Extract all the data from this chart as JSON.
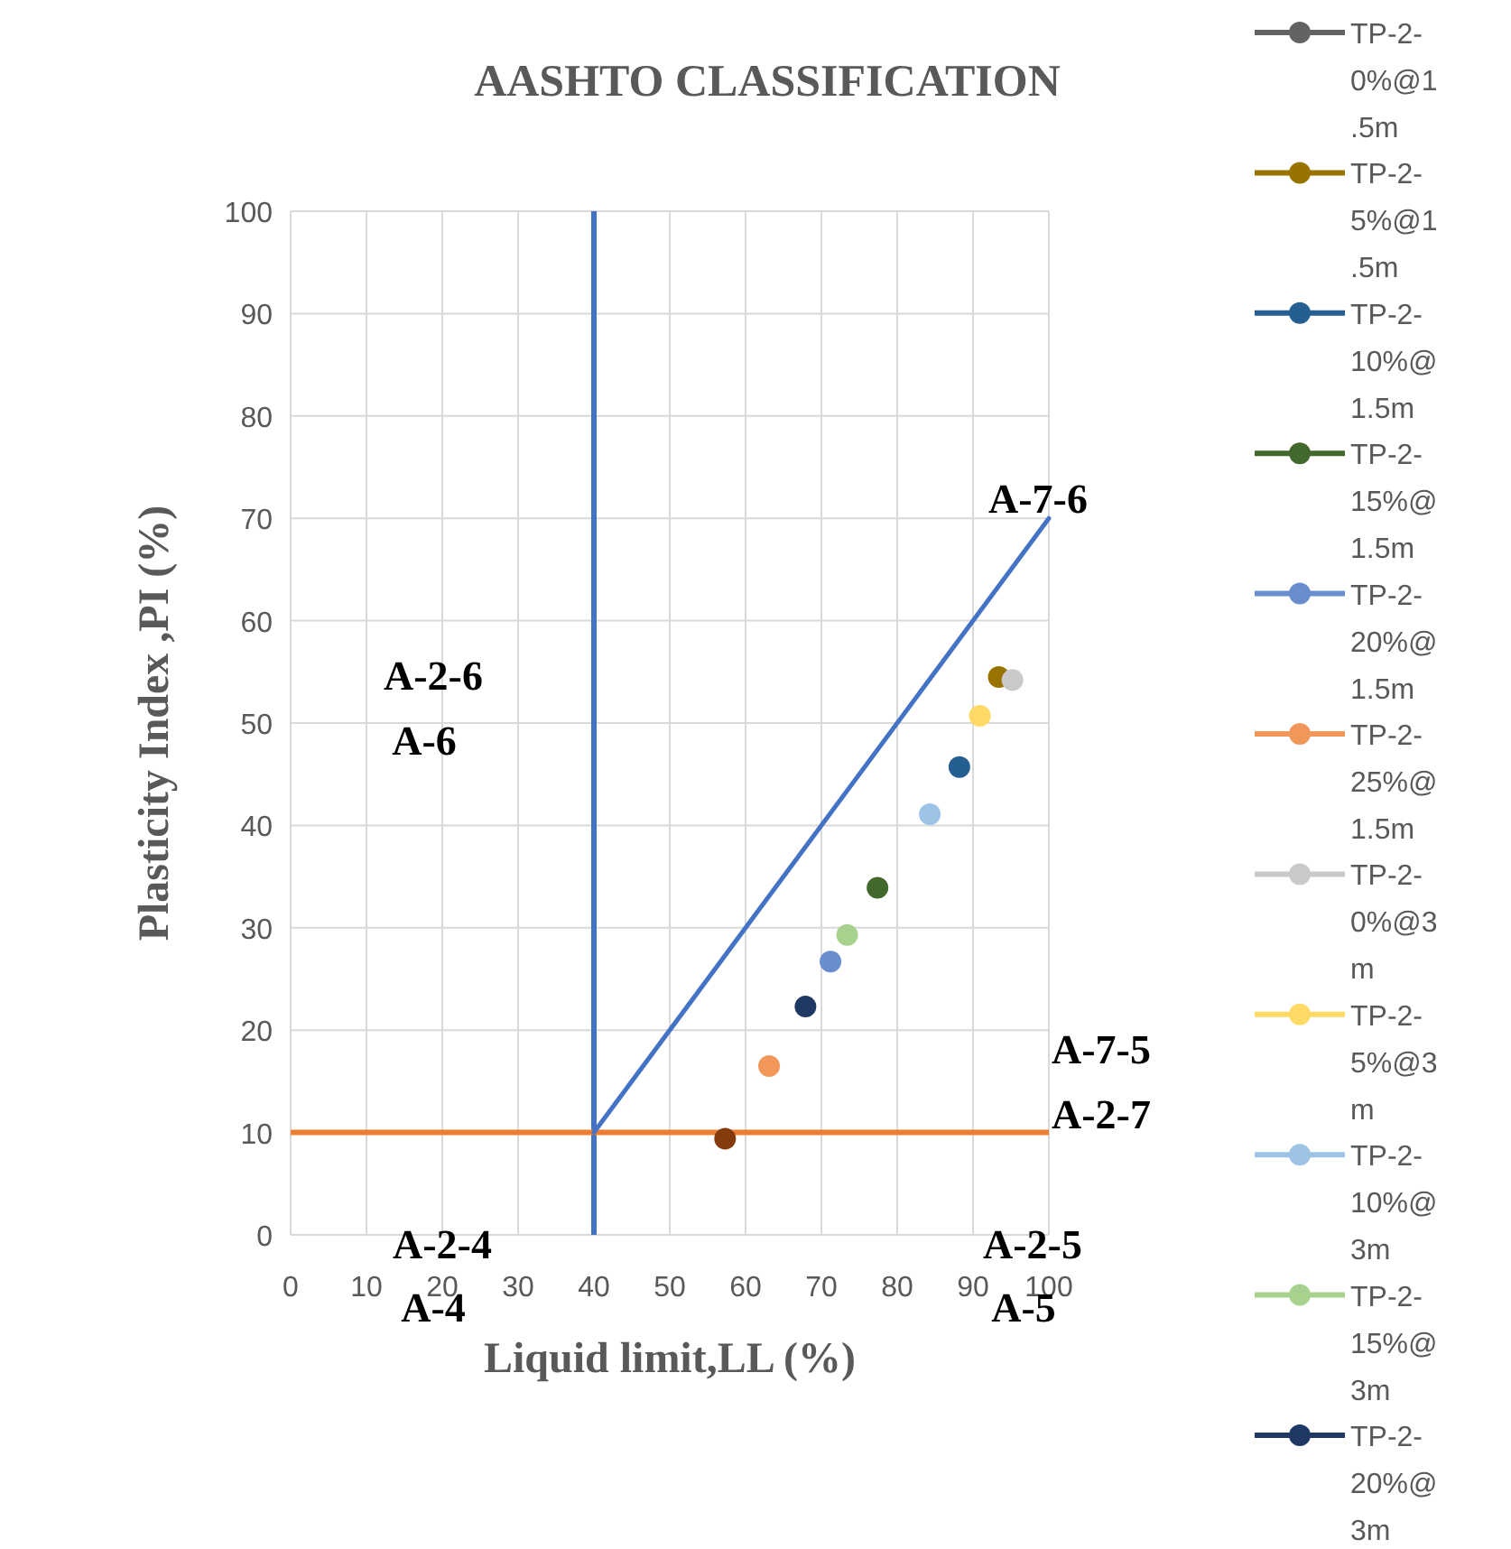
{
  "chart_data": {
    "type": "scatter",
    "title": "AASHTO CLASSIFICATION",
    "xlabel": "Liquid limit,LL (%)",
    "ylabel": "Plasticity Index ,PI (%)",
    "xlim": [
      0,
      100
    ],
    "xticks": [
      0,
      10,
      20,
      30,
      40,
      50,
      60,
      70,
      80,
      90,
      100
    ],
    "ylim": [
      0,
      100
    ],
    "yticks": [
      0,
      10,
      20,
      30,
      40,
      50,
      60,
      70,
      80,
      90,
      100
    ],
    "grid": true,
    "legend": "right",
    "marker": "circle",
    "series": [
      {
        "name": "TP-2-0%@1.5m",
        "color": "#636363"
      },
      {
        "name": "TP-2-5%@1.5m",
        "color": "#997300",
        "x": [
          93.4
        ],
        "values": [
          54.5
        ]
      },
      {
        "name": "TP-2-10%@1.5m",
        "color": "#255e91",
        "x": [
          88.2
        ],
        "values": [
          45.7
        ]
      },
      {
        "name": "TP-2-15%@1.5m",
        "color": "#43682b",
        "x": [
          77.4
        ],
        "values": [
          33.9
        ]
      },
      {
        "name": "TP-2-20%@1.5m",
        "color": "#698ed0",
        "x": [
          71.2
        ],
        "values": [
          26.7
        ]
      },
      {
        "name": "TP-2-25%@1.5m",
        "color": "#f1975a",
        "x": [
          63.1
        ],
        "values": [
          16.5
        ]
      },
      {
        "name": "TP-2-0%@3m",
        "color": "#c9c9c9",
        "x": [
          95.2
        ],
        "values": [
          54.2
        ]
      },
      {
        "name": "TP-2-5%@3m",
        "color": "#ffd966",
        "x": [
          90.9
        ],
        "values": [
          50.7
        ]
      },
      {
        "name": "TP-2-10%@3m",
        "color": "#9dc3e6",
        "x": [
          84.3
        ],
        "values": [
          41.1
        ]
      },
      {
        "name": "TP-2-15%@3m",
        "color": "#a9d18e",
        "x": [
          73.4
        ],
        "values": [
          29.3
        ]
      },
      {
        "name": "TP-2-20%@3m",
        "color": "#203864",
        "x": [
          67.9
        ],
        "values": [
          22.3
        ]
      },
      {
        "color": "#843c0c",
        "x": [
          57.3
        ],
        "values": [
          9.4
        ]
      },
      {
        "type": "line",
        "color": "#4472c4",
        "marker": "none",
        "x": [
          40,
          100
        ],
        "values": [
          10,
          70
        ]
      }
    ],
    "ref_lines": [
      {
        "axis": "x",
        "value": 40,
        "color": "#4472c4"
      },
      {
        "axis": "y",
        "value": 10,
        "color": "#ed7d31"
      }
    ],
    "annotations": [
      "A-7-6",
      "A-2-6",
      "A-6",
      "A-7-5",
      "A-2-7",
      "A-2-4",
      "A-4",
      "A-2-5",
      "A-5"
    ]
  }
}
